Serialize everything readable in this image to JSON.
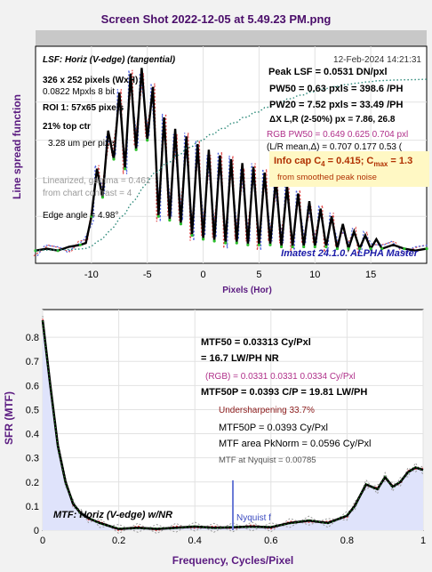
{
  "window": {
    "title": "Screen Shot 2022-12-05 at 5.49.23 PM.png"
  },
  "top_panel": {
    "timestamp": "12-Feb-2024 14:21:31",
    "left_info": [
      {
        "text": "LSF: Horiz (V-edge) (tangential)",
        "style": "bold-italic"
      },
      {
        "text": "326 x 252 pixels (WxH)",
        "style": "bold"
      },
      {
        "text": "0.0822 Mpxls   8 bit",
        "style": "normal"
      },
      {
        "text": "ROI 1:  57x65 pixels",
        "style": "bold"
      },
      {
        "text": "21% top ctr",
        "style": "bold"
      },
      {
        "text": "3.28 um per pixel",
        "style": "normal"
      },
      {
        "text": "Linearized, gamma = 0.461",
        "style": "faded"
      },
      {
        "text": "from chart contrast = 4",
        "style": "faded"
      },
      {
        "text": "Edge angle = 4.98°",
        "style": "normal"
      }
    ],
    "right_info": [
      {
        "text": "Peak LSF = 0.0531 DN/pxl",
        "style": "bold"
      },
      {
        "text": "PW50 = 0.63 pxls = 398.6 /PH",
        "style": "bold"
      },
      {
        "text": "PW20 = 7.52 pxls = 33.49 /PH",
        "style": "bold"
      },
      {
        "text": "ΔX L,R (2-50%) px = 7.86, 26.8",
        "style": "bold-small"
      },
      {
        "text": "RGB PW50 =  0.649   0.625   0.704 pxl",
        "style": "magenta"
      },
      {
        "text": "(L/R mean,Δ) = 0.707  0.177  0.53 (",
        "style": "normal"
      }
    ],
    "info_cap": "Info cap C",
    "info_cap_sub": "4",
    "info_cap_value": " = 0.415;  C",
    "info_cap_max_sub": "max",
    "info_cap_max_value": " = 1.3",
    "info_note": "from smoothed peak noise",
    "watermark": "Imatest 24.1.0. ALPHA Master",
    "ylabel": "Line spread function",
    "xlabel": "Pixels (Hor)",
    "xticks": [
      "-10",
      "-5",
      "0",
      "5",
      "10",
      "15"
    ]
  },
  "bottom_panel": {
    "lines": [
      {
        "text": "MTF50 = 0.03313 Cy/Pxl",
        "style": "bold"
      },
      {
        "text": "= 16.7 LW/PH  NR",
        "style": "bold"
      },
      {
        "text": "(RGB) = 0.0331  0.0331  0.0334 Cy/Pxl",
        "style": "magenta"
      },
      {
        "text": "MTF50P = 0.0393 C/P = 19.81 LW/PH",
        "style": "bold"
      },
      {
        "text": "Undersharpening 33.7%",
        "style": "darkred"
      },
      {
        "text": "MTF50P = 0.0393 Cy/Pxl",
        "style": "normal"
      },
      {
        "text": "MTF area PkNorm = 0.0596 Cy/Pxl",
        "style": "normal"
      },
      {
        "text": "MTF at Nyquist = 0.00785",
        "style": "small-gray"
      }
    ],
    "legend": "MTF: Horiz (V-edge) w/NR",
    "nyquist_label": "Nyquist f",
    "ylabel": "SFR (MTF)",
    "xlabel": "Frequency, Cycles/Pixel",
    "xticks": [
      "0",
      "0.2",
      "0.4",
      "0.6",
      "0.8",
      "1"
    ],
    "yticks": [
      "0",
      "0.1",
      "0.2",
      "0.3",
      "0.4",
      "0.5",
      "0.6",
      "0.7",
      "0.8"
    ]
  },
  "chart_data": [
    {
      "type": "line",
      "title": "",
      "xlabel": "Pixels (Hor)",
      "ylabel": "Line spread function",
      "xlim": [
        -15,
        20
      ],
      "ylim": [
        0,
        1
      ],
      "grid": true,
      "series": [
        {
          "x": [
            -15,
            -14,
            -13,
            -12,
            -11,
            -10.5,
            -10,
            -9.5,
            -9,
            -8.5,
            -8,
            -7.5,
            -7,
            -6.5,
            -6,
            -5.5,
            -5,
            -4.5,
            -4,
            -3.5,
            -3,
            -2.5,
            -2,
            -1.5,
            -1,
            -0.5,
            0,
            0.5,
            1,
            1.5,
            2,
            2.5,
            3,
            3.5,
            4,
            4.5,
            5,
            5.5,
            6,
            6.5,
            7,
            7.5,
            8,
            8.5,
            9,
            9.5,
            10,
            10.5,
            11,
            11.5,
            12,
            12.5,
            13,
            13.5,
            14,
            14.5,
            15,
            15.5,
            16,
            17,
            18,
            19,
            20
          ],
          "values": [
            0.02,
            0.03,
            0.02,
            0.04,
            0.05,
            0.06,
            0.2,
            0.45,
            0.3,
            0.65,
            0.5,
            0.85,
            0.45,
            0.95,
            0.55,
            0.98,
            0.6,
            0.88,
            0.2,
            0.72,
            0.18,
            0.66,
            0.16,
            0.62,
            0.1,
            0.58,
            0.08,
            0.55,
            0.07,
            0.52,
            0.06,
            0.5,
            0.06,
            0.48,
            0.05,
            0.46,
            0.05,
            0.43,
            0.05,
            0.4,
            0.04,
            0.36,
            0.04,
            0.32,
            0.04,
            0.28,
            0.04,
            0.24,
            0.04,
            0.2,
            0.03,
            0.16,
            0.03,
            0.12,
            0.03,
            0.1,
            0.03,
            0.08,
            0.03,
            0.05,
            0.03,
            0.02,
            0.03
          ]
        }
      ]
    },
    {
      "type": "line",
      "title": "",
      "xlabel": "Frequency, Cycles/Pixel",
      "ylabel": "SFR (MTF)",
      "xlim": [
        0,
        1
      ],
      "ylim": [
        0,
        0.9
      ],
      "grid": true,
      "series": [
        {
          "x": [
            0,
            0.02,
            0.04,
            0.06,
            0.08,
            0.1,
            0.12,
            0.15,
            0.2,
            0.25,
            0.3,
            0.35,
            0.4,
            0.45,
            0.5,
            0.55,
            0.6,
            0.65,
            0.7,
            0.75,
            0.8,
            0.82,
            0.85,
            0.88,
            0.9,
            0.92,
            0.94,
            0.96,
            0.98,
            1
          ],
          "values": [
            0.87,
            0.6,
            0.35,
            0.2,
            0.11,
            0.07,
            0.05,
            0.03,
            0.005,
            0.01,
            0.005,
            0.01,
            0.015,
            0.01,
            0.012,
            0.015,
            0.012,
            0.03,
            0.04,
            0.03,
            0.06,
            0.1,
            0.19,
            0.17,
            0.22,
            0.18,
            0.2,
            0.24,
            0.26,
            0.25
          ]
        }
      ]
    }
  ]
}
